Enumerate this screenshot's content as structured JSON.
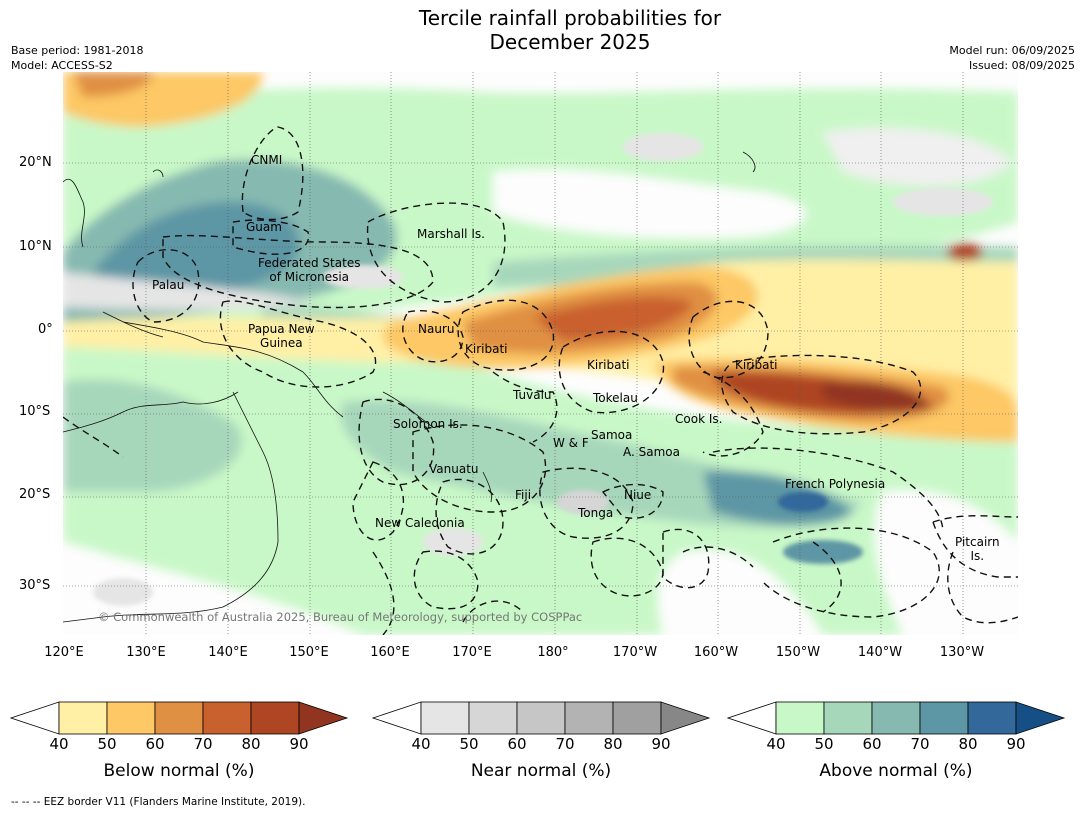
{
  "title_line1": "Tercile rainfall probabilities for",
  "title_line2": "December 2025",
  "meta_left": {
    "base_period": "Base period: 1981-2018",
    "model": "Model: ACCESS-S2"
  },
  "meta_right": {
    "model_run": "Model run: 06/09/2025",
    "issued": "Issued: 08/09/2025"
  },
  "lat_labels": [
    "20°N",
    "10°N",
    "0°",
    "10°S",
    "20°S",
    "30°S"
  ],
  "lon_labels": [
    "120°E",
    "130°E",
    "140°E",
    "150°E",
    "160°E",
    "170°E",
    "180°",
    "170°W",
    "160°W",
    "150°W",
    "140°W",
    "130°W"
  ],
  "regions": {
    "cnmi": "CNMI",
    "guam": "Guam",
    "marshall": "Marshall Is.",
    "fsm1": "Federated States",
    "fsm2": "of Micronesia",
    "palau": "Palau",
    "png1": "Papua New",
    "png2": "Guinea",
    "nauru": "Nauru",
    "kiribati_w": "Kiribati",
    "kiribati_c": "Kiribati",
    "kiribati_e": "Kiribati",
    "tuvalu": "Tuvalu",
    "tokelau": "Tokelau",
    "solomon": "Solomon Is.",
    "cook": "Cook Is.",
    "samoa": "Samoa",
    "wf": "W & F",
    "asamoa": "A. Samoa",
    "vanuatu": "Vanuatu",
    "fiji": "Fiji",
    "niue": "Niue",
    "tonga": "Tonga",
    "french_poly": "French Polynesia",
    "new_caledonia": "New Caledonia",
    "pitcairn1": "Pitcairn",
    "pitcairn2": "Is."
  },
  "copyright": "© Commonwealth of Australia 2025, Bureau of Meteorology, supported by COSPPac",
  "colorbars": [
    {
      "title": "Below normal (%)",
      "ticks": [
        "40",
        "50",
        "60",
        "70",
        "80",
        "90"
      ],
      "colors": [
        "#fff0a6",
        "#fdc865",
        "#e09043",
        "#c9612f",
        "#ae4523",
        "#913420"
      ]
    },
    {
      "title": "Near normal (%)",
      "ticks": [
        "40",
        "50",
        "60",
        "70",
        "80",
        "90"
      ],
      "colors": [
        "#e5e5e5",
        "#d6d6d6",
        "#c6c6c6",
        "#b3b3b3",
        "#a0a0a0",
        "#878787"
      ]
    },
    {
      "title": "Above normal (%)",
      "ticks": [
        "40",
        "50",
        "60",
        "70",
        "80",
        "90"
      ],
      "colors": [
        "#c9f8c8",
        "#a7d7bb",
        "#86b9b0",
        "#5d96a4",
        "#33689b",
        "#164f85"
      ]
    }
  ],
  "footer": "--  --  -- EEZ border V11 (Flanders Marine Institute, 2019)."
}
